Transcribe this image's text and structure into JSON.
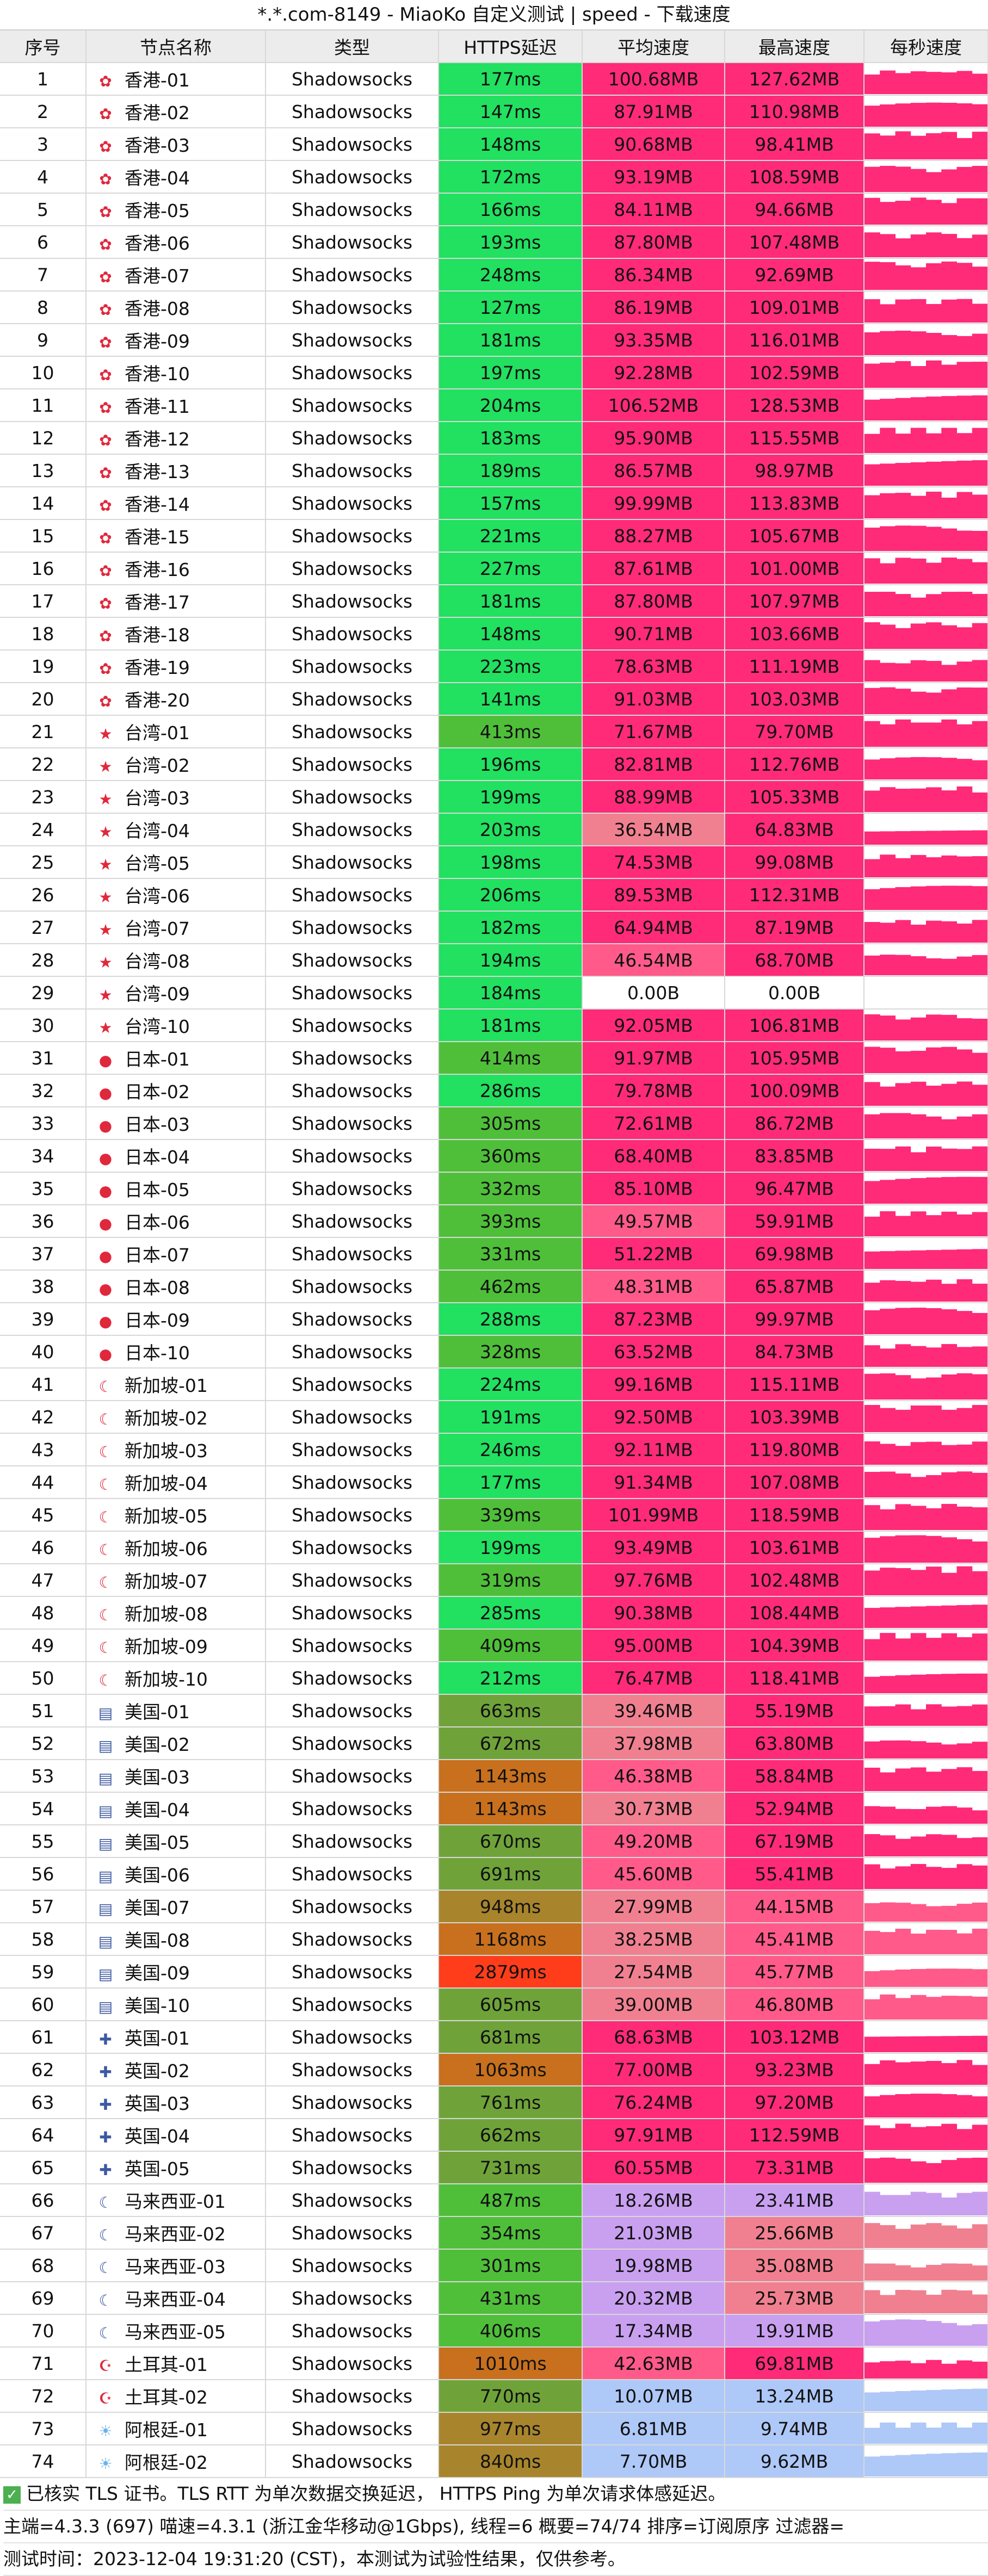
{
  "title": "*.*.com-8149 - MiaoKo 自定义测试 | speed - 下载速度",
  "columns": [
    "序号",
    "节点名称",
    "类型",
    "HTTPS延迟",
    "平均速度",
    "最高速度",
    "每秒速度"
  ],
  "rows": [
    {
      "idx": "1",
      "flag": "hk",
      "name": "香港-01",
      "type": "Shadowsocks",
      "latency": "177ms",
      "avg": "100.68MB",
      "max": "127.62MB"
    },
    {
      "idx": "2",
      "flag": "hk",
      "name": "香港-02",
      "type": "Shadowsocks",
      "latency": "147ms",
      "avg": "87.91MB",
      "max": "110.98MB"
    },
    {
      "idx": "3",
      "flag": "hk",
      "name": "香港-03",
      "type": "Shadowsocks",
      "latency": "148ms",
      "avg": "90.68MB",
      "max": "98.41MB"
    },
    {
      "idx": "4",
      "flag": "hk",
      "name": "香港-04",
      "type": "Shadowsocks",
      "latency": "172ms",
      "avg": "93.19MB",
      "max": "108.59MB"
    },
    {
      "idx": "5",
      "flag": "hk",
      "name": "香港-05",
      "type": "Shadowsocks",
      "latency": "166ms",
      "avg": "84.11MB",
      "max": "94.66MB"
    },
    {
      "idx": "6",
      "flag": "hk",
      "name": "香港-06",
      "type": "Shadowsocks",
      "latency": "193ms",
      "avg": "87.80MB",
      "max": "107.48MB"
    },
    {
      "idx": "7",
      "flag": "hk",
      "name": "香港-07",
      "type": "Shadowsocks",
      "latency": "248ms",
      "avg": "86.34MB",
      "max": "92.69MB"
    },
    {
      "idx": "8",
      "flag": "hk",
      "name": "香港-08",
      "type": "Shadowsocks",
      "latency": "127ms",
      "avg": "86.19MB",
      "max": "109.01MB"
    },
    {
      "idx": "9",
      "flag": "hk",
      "name": "香港-09",
      "type": "Shadowsocks",
      "latency": "181ms",
      "avg": "93.35MB",
      "max": "116.01MB"
    },
    {
      "idx": "10",
      "flag": "hk",
      "name": "香港-10",
      "type": "Shadowsocks",
      "latency": "197ms",
      "avg": "92.28MB",
      "max": "102.59MB"
    },
    {
      "idx": "11",
      "flag": "hk",
      "name": "香港-11",
      "type": "Shadowsocks",
      "latency": "204ms",
      "avg": "106.52MB",
      "max": "128.53MB"
    },
    {
      "idx": "12",
      "flag": "hk",
      "name": "香港-12",
      "type": "Shadowsocks",
      "latency": "183ms",
      "avg": "95.90MB",
      "max": "115.55MB"
    },
    {
      "idx": "13",
      "flag": "hk",
      "name": "香港-13",
      "type": "Shadowsocks",
      "latency": "189ms",
      "avg": "86.57MB",
      "max": "98.97MB"
    },
    {
      "idx": "14",
      "flag": "hk",
      "name": "香港-14",
      "type": "Shadowsocks",
      "latency": "157ms",
      "avg": "99.99MB",
      "max": "113.83MB"
    },
    {
      "idx": "15",
      "flag": "hk",
      "name": "香港-15",
      "type": "Shadowsocks",
      "latency": "221ms",
      "avg": "88.27MB",
      "max": "105.67MB"
    },
    {
      "idx": "16",
      "flag": "hk",
      "name": "香港-16",
      "type": "Shadowsocks",
      "latency": "227ms",
      "avg": "87.61MB",
      "max": "101.00MB"
    },
    {
      "idx": "17",
      "flag": "hk",
      "name": "香港-17",
      "type": "Shadowsocks",
      "latency": "181ms",
      "avg": "87.80MB",
      "max": "107.97MB"
    },
    {
      "idx": "18",
      "flag": "hk",
      "name": "香港-18",
      "type": "Shadowsocks",
      "latency": "148ms",
      "avg": "90.71MB",
      "max": "103.66MB"
    },
    {
      "idx": "19",
      "flag": "hk",
      "name": "香港-19",
      "type": "Shadowsocks",
      "latency": "223ms",
      "avg": "78.63MB",
      "max": "111.19MB"
    },
    {
      "idx": "20",
      "flag": "hk",
      "name": "香港-20",
      "type": "Shadowsocks",
      "latency": "141ms",
      "avg": "91.03MB",
      "max": "103.03MB"
    },
    {
      "idx": "21",
      "flag": "cn",
      "name": "台湾-01",
      "type": "Shadowsocks",
      "latency": "413ms",
      "avg": "71.67MB",
      "max": "79.70MB"
    },
    {
      "idx": "22",
      "flag": "cn",
      "name": "台湾-02",
      "type": "Shadowsocks",
      "latency": "196ms",
      "avg": "82.81MB",
      "max": "112.76MB"
    },
    {
      "idx": "23",
      "flag": "cn",
      "name": "台湾-03",
      "type": "Shadowsocks",
      "latency": "199ms",
      "avg": "88.99MB",
      "max": "105.33MB"
    },
    {
      "idx": "24",
      "flag": "cn",
      "name": "台湾-04",
      "type": "Shadowsocks",
      "latency": "203ms",
      "avg": "36.54MB",
      "max": "64.83MB"
    },
    {
      "idx": "25",
      "flag": "cn",
      "name": "台湾-05",
      "type": "Shadowsocks",
      "latency": "198ms",
      "avg": "74.53MB",
      "max": "99.08MB"
    },
    {
      "idx": "26",
      "flag": "cn",
      "name": "台湾-06",
      "type": "Shadowsocks",
      "latency": "206ms",
      "avg": "89.53MB",
      "max": "112.31MB"
    },
    {
      "idx": "27",
      "flag": "cn",
      "name": "台湾-07",
      "type": "Shadowsocks",
      "latency": "182ms",
      "avg": "64.94MB",
      "max": "87.19MB"
    },
    {
      "idx": "28",
      "flag": "cn",
      "name": "台湾-08",
      "type": "Shadowsocks",
      "latency": "194ms",
      "avg": "46.54MB",
      "max": "68.70MB"
    },
    {
      "idx": "29",
      "flag": "cn",
      "name": "台湾-09",
      "type": "Shadowsocks",
      "latency": "184ms",
      "avg": "0.00B",
      "max": "0.00B"
    },
    {
      "idx": "30",
      "flag": "cn",
      "name": "台湾-10",
      "type": "Shadowsocks",
      "latency": "181ms",
      "avg": "92.05MB",
      "max": "106.81MB"
    },
    {
      "idx": "31",
      "flag": "jp",
      "name": "日本-01",
      "type": "Shadowsocks",
      "latency": "414ms",
      "avg": "91.97MB",
      "max": "105.95MB"
    },
    {
      "idx": "32",
      "flag": "jp",
      "name": "日本-02",
      "type": "Shadowsocks",
      "latency": "286ms",
      "avg": "79.78MB",
      "max": "100.09MB"
    },
    {
      "idx": "33",
      "flag": "jp",
      "name": "日本-03",
      "type": "Shadowsocks",
      "latency": "305ms",
      "avg": "72.61MB",
      "max": "86.72MB"
    },
    {
      "idx": "34",
      "flag": "jp",
      "name": "日本-04",
      "type": "Shadowsocks",
      "latency": "360ms",
      "avg": "68.40MB",
      "max": "83.85MB"
    },
    {
      "idx": "35",
      "flag": "jp",
      "name": "日本-05",
      "type": "Shadowsocks",
      "latency": "332ms",
      "avg": "85.10MB",
      "max": "96.47MB"
    },
    {
      "idx": "36",
      "flag": "jp",
      "name": "日本-06",
      "type": "Shadowsocks",
      "latency": "393ms",
      "avg": "49.57MB",
      "max": "59.91MB"
    },
    {
      "idx": "37",
      "flag": "jp",
      "name": "日本-07",
      "type": "Shadowsocks",
      "latency": "331ms",
      "avg": "51.22MB",
      "max": "69.98MB"
    },
    {
      "idx": "38",
      "flag": "jp",
      "name": "日本-08",
      "type": "Shadowsocks",
      "latency": "462ms",
      "avg": "48.31MB",
      "max": "65.87MB"
    },
    {
      "idx": "39",
      "flag": "jp",
      "name": "日本-09",
      "type": "Shadowsocks",
      "latency": "288ms",
      "avg": "87.23MB",
      "max": "99.97MB"
    },
    {
      "idx": "40",
      "flag": "jp",
      "name": "日本-10",
      "type": "Shadowsocks",
      "latency": "328ms",
      "avg": "63.52MB",
      "max": "84.73MB"
    },
    {
      "idx": "41",
      "flag": "sg",
      "name": "新加坡-01",
      "type": "Shadowsocks",
      "latency": "224ms",
      "avg": "99.16MB",
      "max": "115.11MB"
    },
    {
      "idx": "42",
      "flag": "sg",
      "name": "新加坡-02",
      "type": "Shadowsocks",
      "latency": "191ms",
      "avg": "92.50MB",
      "max": "103.39MB"
    },
    {
      "idx": "43",
      "flag": "sg",
      "name": "新加坡-03",
      "type": "Shadowsocks",
      "latency": "246ms",
      "avg": "92.11MB",
      "max": "119.80MB"
    },
    {
      "idx": "44",
      "flag": "sg",
      "name": "新加坡-04",
      "type": "Shadowsocks",
      "latency": "177ms",
      "avg": "91.34MB",
      "max": "107.08MB"
    },
    {
      "idx": "45",
      "flag": "sg",
      "name": "新加坡-05",
      "type": "Shadowsocks",
      "latency": "339ms",
      "avg": "101.99MB",
      "max": "118.59MB"
    },
    {
      "idx": "46",
      "flag": "sg",
      "name": "新加坡-06",
      "type": "Shadowsocks",
      "latency": "199ms",
      "avg": "93.49MB",
      "max": "103.61MB"
    },
    {
      "idx": "47",
      "flag": "sg",
      "name": "新加坡-07",
      "type": "Shadowsocks",
      "latency": "319ms",
      "avg": "97.76MB",
      "max": "102.48MB"
    },
    {
      "idx": "48",
      "flag": "sg",
      "name": "新加坡-08",
      "type": "Shadowsocks",
      "latency": "285ms",
      "avg": "90.38MB",
      "max": "108.44MB"
    },
    {
      "idx": "49",
      "flag": "sg",
      "name": "新加坡-09",
      "type": "Shadowsocks",
      "latency": "409ms",
      "avg": "95.00MB",
      "max": "104.39MB"
    },
    {
      "idx": "50",
      "flag": "sg",
      "name": "新加坡-10",
      "type": "Shadowsocks",
      "latency": "212ms",
      "avg": "76.47MB",
      "max": "118.41MB"
    },
    {
      "idx": "51",
      "flag": "us",
      "name": "美国-01",
      "type": "Shadowsocks",
      "latency": "663ms",
      "avg": "39.46MB",
      "max": "55.19MB"
    },
    {
      "idx": "52",
      "flag": "us",
      "name": "美国-02",
      "type": "Shadowsocks",
      "latency": "672ms",
      "avg": "37.98MB",
      "max": "63.80MB"
    },
    {
      "idx": "53",
      "flag": "us",
      "name": "美国-03",
      "type": "Shadowsocks",
      "latency": "1143ms",
      "avg": "46.38MB",
      "max": "58.84MB"
    },
    {
      "idx": "54",
      "flag": "us",
      "name": "美国-04",
      "type": "Shadowsocks",
      "latency": "1143ms",
      "avg": "30.73MB",
      "max": "52.94MB"
    },
    {
      "idx": "55",
      "flag": "us",
      "name": "美国-05",
      "type": "Shadowsocks",
      "latency": "670ms",
      "avg": "49.20MB",
      "max": "67.19MB"
    },
    {
      "idx": "56",
      "flag": "us",
      "name": "美国-06",
      "type": "Shadowsocks",
      "latency": "691ms",
      "avg": "45.60MB",
      "max": "55.41MB"
    },
    {
      "idx": "57",
      "flag": "us",
      "name": "美国-07",
      "type": "Shadowsocks",
      "latency": "948ms",
      "avg": "27.99MB",
      "max": "44.15MB"
    },
    {
      "idx": "58",
      "flag": "us",
      "name": "美国-08",
      "type": "Shadowsocks",
      "latency": "1168ms",
      "avg": "38.25MB",
      "max": "45.41MB"
    },
    {
      "idx": "59",
      "flag": "us",
      "name": "美国-09",
      "type": "Shadowsocks",
      "latency": "2879ms",
      "avg": "27.54MB",
      "max": "45.77MB"
    },
    {
      "idx": "60",
      "flag": "us",
      "name": "美国-10",
      "type": "Shadowsocks",
      "latency": "605ms",
      "avg": "39.00MB",
      "max": "46.80MB"
    },
    {
      "idx": "61",
      "flag": "uk",
      "name": "英国-01",
      "type": "Shadowsocks",
      "latency": "681ms",
      "avg": "68.63MB",
      "max": "103.12MB"
    },
    {
      "idx": "62",
      "flag": "uk",
      "name": "英国-02",
      "type": "Shadowsocks",
      "latency": "1063ms",
      "avg": "77.00MB",
      "max": "93.23MB"
    },
    {
      "idx": "63",
      "flag": "uk",
      "name": "英国-03",
      "type": "Shadowsocks",
      "latency": "761ms",
      "avg": "76.24MB",
      "max": "97.20MB"
    },
    {
      "idx": "64",
      "flag": "uk",
      "name": "英国-04",
      "type": "Shadowsocks",
      "latency": "662ms",
      "avg": "97.91MB",
      "max": "112.59MB"
    },
    {
      "idx": "65",
      "flag": "uk",
      "name": "英国-05",
      "type": "Shadowsocks",
      "latency": "731ms",
      "avg": "60.55MB",
      "max": "73.31MB"
    },
    {
      "idx": "66",
      "flag": "my",
      "name": "马来西亚-01",
      "type": "Shadowsocks",
      "latency": "487ms",
      "avg": "18.26MB",
      "max": "23.41MB"
    },
    {
      "idx": "67",
      "flag": "my",
      "name": "马来西亚-02",
      "type": "Shadowsocks",
      "latency": "354ms",
      "avg": "21.03MB",
      "max": "25.66MB"
    },
    {
      "idx": "68",
      "flag": "my",
      "name": "马来西亚-03",
      "type": "Shadowsocks",
      "latency": "301ms",
      "avg": "19.98MB",
      "max": "35.08MB"
    },
    {
      "idx": "69",
      "flag": "my",
      "name": "马来西亚-04",
      "type": "Shadowsocks",
      "latency": "431ms",
      "avg": "20.32MB",
      "max": "25.73MB"
    },
    {
      "idx": "70",
      "flag": "my",
      "name": "马来西亚-05",
      "type": "Shadowsocks",
      "latency": "406ms",
      "avg": "17.34MB",
      "max": "19.91MB"
    },
    {
      "idx": "71",
      "flag": "tr",
      "name": "土耳其-01",
      "type": "Shadowsocks",
      "latency": "1010ms",
      "avg": "42.63MB",
      "max": "69.81MB"
    },
    {
      "idx": "72",
      "flag": "tr",
      "name": "土耳其-02",
      "type": "Shadowsocks",
      "latency": "770ms",
      "avg": "10.07MB",
      "max": "13.24MB"
    },
    {
      "idx": "73",
      "flag": "ar",
      "name": "阿根廷-01",
      "type": "Shadowsocks",
      "latency": "977ms",
      "avg": "6.81MB",
      "max": "9.74MB"
    },
    {
      "idx": "74",
      "flag": "ar",
      "name": "阿根廷-02",
      "type": "Shadowsocks",
      "latency": "840ms",
      "avg": "7.70MB",
      "max": "9.62MB"
    }
  ],
  "footer": {
    "line1": "已核实 TLS 证书。TLS RTT 为单次数据交换延迟， HTTPS Ping 为单次请求体感延迟。",
    "line2": "主端=4.3.3 (697) 喵速=4.3.1 (浙江金华移动@1Gbps), 线程=6 概要=74/74 排序=订阅原序 过滤器=",
    "line3": "测试时间：2023-12-04 19:31:20 (CST)，本测试为试验性结果，仅供参考。"
  },
  "watermark": "MiaoKo",
  "colors": {
    "latency_good": "#22e060",
    "latency_ok": "#4fbf3a",
    "latency_mid": "#6fa33a",
    "latency_slow": "#a8852c",
    "latency_bad": "#c8701e",
    "latency_worst": "#ff3d1a",
    "speed_high": "#ff2a78",
    "speed_mid": "#ff5a8a",
    "speed_low": "#f08090",
    "speed_lower": "#c9a0f0",
    "speed_lowest": "#aec8f8",
    "header_bg": "#ececec"
  }
}
